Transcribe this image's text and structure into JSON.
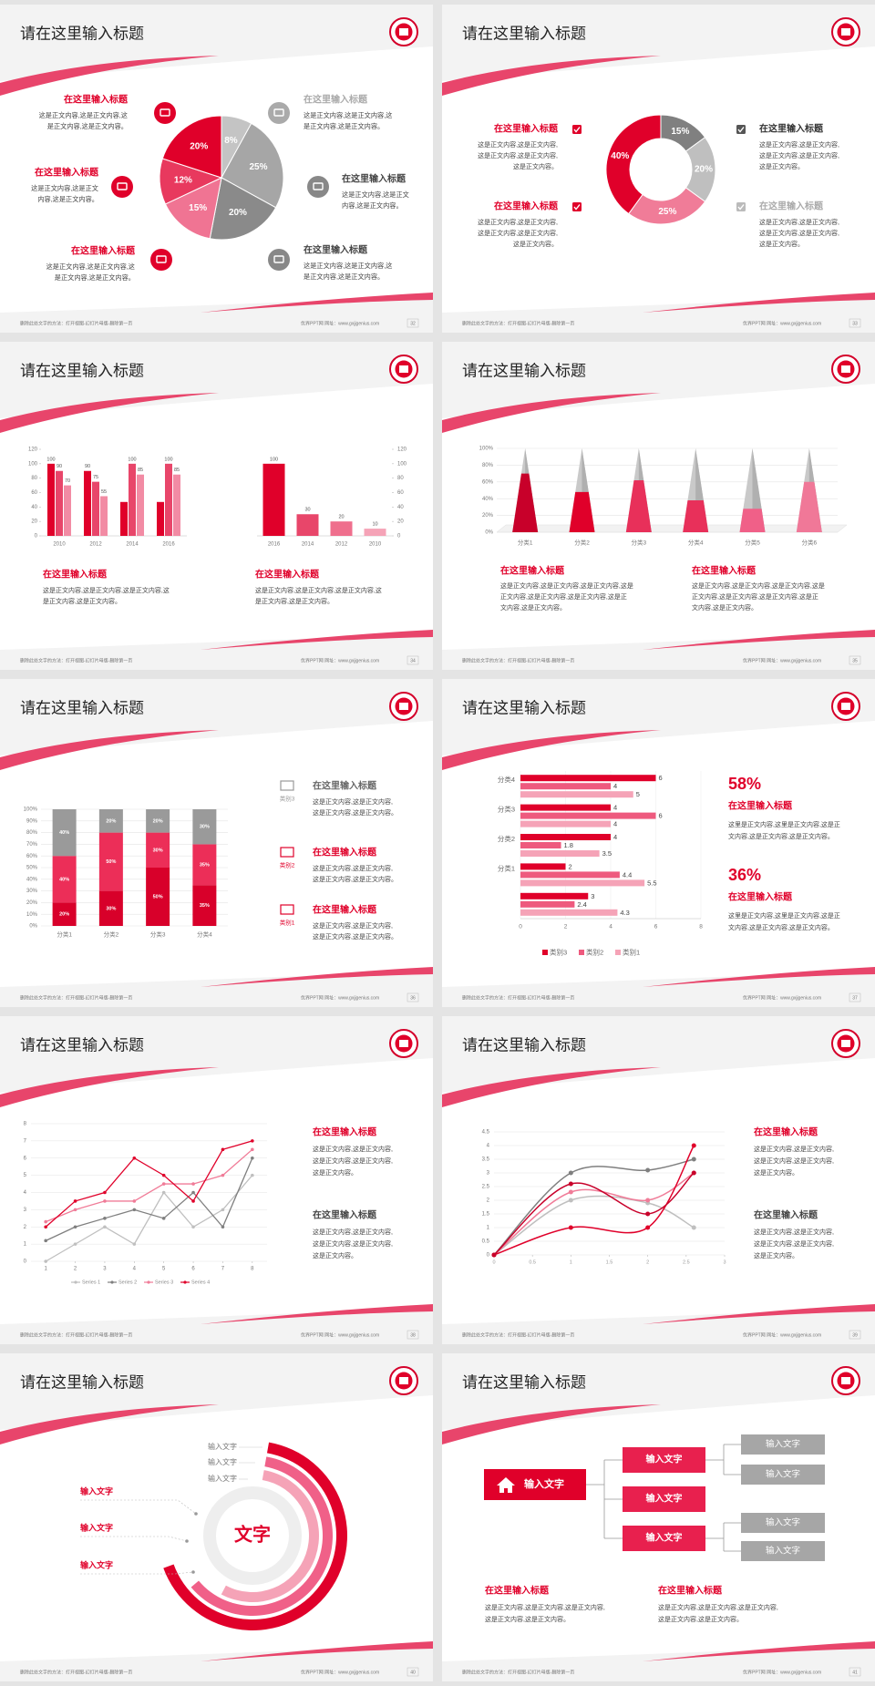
{
  "slides": [
    {
      "title": "请在这里输入标题",
      "footer_left": "删除此处文字的方法：打开视图-幻灯片母版-删除第一页",
      "footer_right": "优界PPT网   网址：www.gxjjgenius.com",
      "page": 32,
      "pie": {
        "values": [
          8,
          25,
          20,
          15,
          12,
          20
        ],
        "value_labels": [
          "8%",
          "25%",
          "20%",
          "15%",
          "12%",
          "20%"
        ],
        "colors": [
          "#c4c4c4",
          "#a6a6a6",
          "#8a8a8a",
          "#f07493",
          "#e8395e",
          "#e0002a"
        ]
      },
      "items": [
        {
          "title": "在这里输入标题",
          "body": [
            "这是正文内容,这是正文内容,这",
            "是正文内容,这是正文内容。"
          ]
        },
        {
          "title": "在这里输入标题",
          "body": [
            "这是正文内容,这是正文",
            "内容,这是正文内容。"
          ]
        },
        {
          "title": "在这里输入标题",
          "body": [
            "这是正文内容,这是正文内容,这",
            "是正文内容,这是正文内容。"
          ]
        },
        {
          "title": "在这里输入标题",
          "body": [
            "这是正文内容,这是正文内容,这",
            "是正文内容,这是正文内容。"
          ]
        },
        {
          "title": "在这里输入标题",
          "body": [
            "这是正文内容,这是正文",
            "内容,这是正文内容。"
          ]
        },
        {
          "title": "在这里输入标题",
          "body": [
            "这是正文内容,这是正文内容,这",
            "是正文内容,这是正文内容。"
          ]
        }
      ]
    },
    {
      "title": "请在这里输入标题",
      "footer_left": "删除此处文字的方法：打开视图-幻灯片母版-删除第一页",
      "footer_right": "优界PPT网   网址：www.gxjjgenius.com",
      "page": 33,
      "donut": {
        "values": [
          15,
          20,
          25,
          40
        ],
        "value_labels": [
          "15%",
          "20%",
          "25%",
          "40%"
        ],
        "colors": [
          "#808080",
          "#bfbfbf",
          "#f07c98",
          "#e0002a"
        ]
      },
      "items": [
        {
          "title": "在这里输入标题",
          "body": [
            "这是正文内容,这是正文内容,",
            "这是正文内容,这是正文内容,",
            "这是正文内容。"
          ]
        },
        {
          "title": "在这里输入标题",
          "body": [
            "这是正文内容,这是正文内容,",
            "这是正文内容,这是正文内容,",
            "这是正文内容。"
          ]
        },
        {
          "title": "在这里输入标题",
          "body": [
            "这是正文内容,这是正文内容,",
            "这是正文内容,这是正文内容,",
            "这是正文内容。"
          ]
        },
        {
          "title": "在这里输入标题",
          "body": [
            "这是正文内容,这是正文内容,",
            "这是正文内容,这是正文内容,",
            "这是正文内容。"
          ]
        }
      ]
    },
    {
      "title": "请在这里输入标题",
      "footer_left": "删除此处文字的方法：打开视图-幻灯片母版-删除第一页",
      "footer_right": "优界PPT网   网址：www.gxjjgenius.com",
      "page": 34,
      "bar_left": {
        "categories": [
          "2010",
          "2012",
          "2014",
          "2016"
        ],
        "ylim": [
          0,
          120
        ],
        "yticks": [
          0,
          20,
          40,
          60,
          80,
          100,
          120
        ],
        "series": [
          {
            "color": "#e0002a",
            "values": [
              100,
              90,
              47,
              47
            ],
            "value_labels": [
              "100",
              "90",
              null,
              null
            ]
          },
          {
            "color": "#e8466a",
            "values": [
              90,
              75,
              100,
              100
            ]
          },
          {
            "color": "#f28ba4",
            "values": [
              70,
              55,
              85,
              85
            ]
          }
        ]
      },
      "bar_right": {
        "categories": [
          "2016",
          "2014",
          "2012",
          "2010"
        ],
        "values": [
          100,
          30,
          20,
          10
        ],
        "colors": [
          "#e0002a",
          "#e8466a",
          "#ef6f8d",
          "#f5a3b7"
        ],
        "ylim": [
          0,
          120
        ],
        "yticks": [
          0,
          20,
          40,
          60,
          80,
          100,
          120
        ]
      },
      "items": [
        {
          "title": "在这里输入标题",
          "body": [
            "这是正文内容,这是正文内容,这是正文内容,这",
            "是正文内容,这是正文内容。"
          ]
        },
        {
          "title": "在这里输入标题",
          "body": [
            "这是正文内容,这是正文内容,这是正文内容,这",
            "是正文内容,这是正文内容。"
          ]
        }
      ]
    },
    {
      "title": "请在这里输入标题",
      "footer_left": "删除此处文字的方法：打开视图-幻灯片母版-删除第一页",
      "footer_right": "优界PPT网   网址：www.gxjjgenius.com",
      "page": 35,
      "cones": {
        "categories": [
          "分类1",
          "分类2",
          "分类3",
          "分类4",
          "分类5",
          "分类6"
        ],
        "values": [
          70,
          48,
          62,
          38,
          28,
          60
        ],
        "colors": [
          "#c8002a",
          "#e0002a",
          "#e8305a",
          "#e8305a",
          "#f06088",
          "#f07898"
        ],
        "ylim": [
          0,
          100
        ],
        "yticks": [
          {
            "value": 0,
            "label": "0%"
          },
          {
            "value": 20,
            "label": "20%"
          },
          {
            "value": 40,
            "label": "40%"
          },
          {
            "value": 60,
            "label": "60%"
          },
          {
            "value": 80,
            "label": "80%"
          },
          {
            "value": 100,
            "label": "100%"
          }
        ]
      },
      "items": [
        {
          "title": "在这里输入标题",
          "body": [
            "这是正文内容,这是正文内容,这是正文内容,这是",
            "正文内容,这是正文内容,这是正文内容,这是正",
            "文内容,这是正文内容。"
          ]
        },
        {
          "title": "在这里输入标题",
          "body": [
            "这是正文内容,这是正文内容,这是正文内容,这是",
            "正文内容,这是正文内容,这是正文内容,这是正",
            "文内容,这是正文内容。"
          ]
        }
      ]
    },
    {
      "title": "请在这里输入标题",
      "footer_left": "删除此处文字的方法：打开视图-幻灯片母版-删除第一页",
      "footer_right": "优界PPT网   网址：www.gxjjgenius.com",
      "page": 36,
      "stacked": {
        "categories": [
          "分类1",
          "分类2",
          "分类3",
          "分类4"
        ],
        "series": [
          {
            "name": "类别1",
            "color": "#d8002a",
            "values": [
              20,
              30,
              50,
              35
            ],
            "value_labels": [
              "20%",
              "30%",
              "50%",
              "35%"
            ]
          },
          {
            "name": "类别2",
            "color": "#ec2e58",
            "values": [
              40,
              50,
              30,
              35
            ],
            "value_labels": [
              "40%",
              "50%",
              "30%",
              "35%"
            ]
          },
          {
            "name": "类别3",
            "color": "#9a9a9a",
            "values": [
              40,
              20,
              20,
              30
            ],
            "value_labels": [
              "40%",
              "20%",
              "20%",
              "30%"
            ]
          }
        ],
        "ylim": [
          0,
          100
        ],
        "yticks": [
          {
            "value": 0,
            "label": "0%"
          },
          {
            "value": 10,
            "label": "10%"
          },
          {
            "value": 20,
            "label": "20%"
          },
          {
            "value": 30,
            "label": "30%"
          },
          {
            "value": 40,
            "label": "40%"
          },
          {
            "value": 50,
            "label": "50%"
          },
          {
            "value": 60,
            "label": "60%"
          },
          {
            "value": 70,
            "label": "70%"
          },
          {
            "value": 80,
            "label": "80%"
          },
          {
            "value": 90,
            "label": "90%"
          },
          {
            "value": 100,
            "label": "100%"
          }
        ]
      },
      "items": [
        {
          "title": "在这里输入标题",
          "body": [
            "这是正文内容,这是正文内容,",
            "这是正文内容,这是正文内容。"
          ]
        },
        {
          "title": "在这里输入标题",
          "body": [
            "这是正文内容,这是正文内容,",
            "这是正文内容,这是正文内容。"
          ]
        },
        {
          "title": "在这里输入标题",
          "body": [
            "这是正文内容,这是正文内容,",
            "这是正文内容,这是正文内容。"
          ]
        }
      ]
    },
    {
      "title": "请在这里输入标题",
      "footer_left": "删除此处文字的方法：打开视图-幻灯片母版-删除第一页",
      "footer_right": "优界PPT网   网址：www.gxjjgenius.com",
      "page": 37,
      "hbar": {
        "categories": [
          null,
          "分类1",
          "分类2",
          "分类3",
          "分类4"
        ],
        "series": [
          {
            "name": "类别3",
            "color": "#e0002a",
            "values": [
              3,
              2,
              4,
              4,
              6
            ]
          },
          {
            "name": "类别2",
            "color": "#ee5a7e",
            "values": [
              2.4,
              4.4,
              1.8,
              6,
              4
            ]
          },
          {
            "name": "类别1",
            "color": "#f5a3b7",
            "values": [
              4.3,
              5.5,
              3.5,
              4,
              5
            ]
          }
        ],
        "xlim": [
          0,
          8
        ],
        "xticks": [
          0,
          2,
          4,
          6,
          8
        ]
      },
      "stats": [
        {
          "value": "58%",
          "title": "在这里输入标题",
          "body": [
            "这里是正文内容,这里是正文内容,这是正",
            "文内容,这是正文内容,这是正文内容。"
          ]
        },
        {
          "value": "36%",
          "title": "在这里输入标题",
          "body": [
            "这里是正文内容,这里是正文内容,这是正",
            "文内容,这是正文内容,这是正文内容。"
          ]
        }
      ]
    },
    {
      "title": "请在这里输入标题",
      "footer_left": "删除此处文字的方法：打开视图-幻灯片母版-删除第一页",
      "footer_right": "优界PPT网   网址：www.gxjjgenius.com",
      "page": 38,
      "line": {
        "x": [
          1,
          2,
          3,
          4,
          5,
          6,
          7,
          8
        ],
        "xlim": [
          0.5,
          8.5
        ],
        "xticks": [
          1,
          2,
          3,
          4,
          5,
          6,
          7,
          8
        ],
        "ylim": [
          0,
          8
        ],
        "yticks": [
          0,
          1,
          2,
          3,
          4,
          5,
          6,
          7,
          8
        ],
        "series": [
          {
            "name": "Series 1",
            "color": "#bfbfbf",
            "values": [
              0,
              1,
              2,
              1,
              4,
              2,
              3,
              5
            ]
          },
          {
            "name": "Series 2",
            "color": "#7f7f7f",
            "values": [
              1.2,
              2,
              2.5,
              3,
              2.5,
              4,
              2,
              6
            ]
          },
          {
            "name": "Series 3",
            "color": "#f07c98",
            "values": [
              2.3,
              3,
              3.5,
              3.5,
              4.5,
              4.5,
              5,
              6.5
            ]
          },
          {
            "name": "Series 4",
            "color": "#e0002a",
            "values": [
              2,
              3.5,
              4,
              6,
              5,
              3.5,
              6.5,
              7
            ]
          }
        ]
      },
      "items": [
        {
          "title": "在这里输入标题",
          "body": [
            "这是正文内容,这是正文内容,",
            "这是正文内容,这是正文内容,",
            "这是正文内容。"
          ]
        },
        {
          "title": "在这里输入标题",
          "body": [
            "这是正文内容,这是正文内容,",
            "这是正文内容,这是正文内容,",
            "这是正文内容。"
          ]
        }
      ]
    },
    {
      "title": "请在这里输入标题",
      "footer_left": "删除此处文字的方法：打开视图-幻灯片母版-删除第一页",
      "footer_right": "优界PPT网   网址：www.gxjjgenius.com",
      "page": 39,
      "curves": {
        "x": [
          0,
          1,
          2,
          2.6
        ],
        "xlim": [
          0,
          3
        ],
        "xticks": [
          0,
          0.5,
          1,
          1.5,
          2,
          2.5,
          3
        ],
        "ylim": [
          0,
          4.5
        ],
        "yticks": [
          0,
          0.5,
          1,
          1.5,
          2,
          2.5,
          3,
          3.5,
          4,
          4.5
        ],
        "series": [
          {
            "color": "#7f7f7f",
            "values": [
              0,
              3,
              3.1,
              3.5
            ]
          },
          {
            "color": "#bfbfbf",
            "values": [
              0,
              2,
              1.9,
              1
            ]
          },
          {
            "color": "#f07c98",
            "values": [
              0,
              2.3,
              2,
              3
            ]
          },
          {
            "color": "#e0002a",
            "values": [
              0,
              1,
              1,
              4
            ]
          },
          {
            "color": "#c8002a",
            "values": [
              0,
              2.6,
              1.5,
              3
            ]
          }
        ]
      },
      "items": [
        {
          "title": "在这里输入标题",
          "body": [
            "这是正文内容,这是正文内容,",
            "这是正文内容,这是正文内容,",
            "这是正文内容。"
          ]
        },
        {
          "title": "在这里输入标题",
          "body": [
            "这是正文内容,这是正文内容,",
            "这是正文内容,这是正文内容,",
            "这是正文内容。"
          ]
        }
      ]
    },
    {
      "title": "请在这里输入标题",
      "footer_left": "删除此处文字的方法：打开视图-幻灯片母版-删除第一页",
      "footer_right": "优界PPT网   网址：www.gxjjgenius.com",
      "page": 40,
      "diagram": {
        "center": "文字",
        "right_labels": [
          "输入文字",
          "输入文字",
          "输入文字"
        ],
        "left_labels": [
          "输入文字",
          "输入文字",
          "输入文字"
        ]
      }
    },
    {
      "title": "请在这里输入标题",
      "footer_left": "删除此处文字的方法：打开视图-幻灯片母版-删除第一页",
      "footer_right": "优界PPT网   网址：www.gxjjgenius.com",
      "page": 41,
      "flow": {
        "root": "输入文字",
        "mids": [
          "输入文字",
          "输入文字",
          "输入文字"
        ],
        "leaves": [
          "输入文字",
          "输入文字",
          "输入文字",
          "输入文字"
        ]
      },
      "items": [
        {
          "title": "在这里输入标题",
          "body": [
            "这是正文内容,这是正文内容,这是正文内容,",
            "这是正文内容,这是正文内容。"
          ]
        },
        {
          "title": "在这里输入标题",
          "body": [
            "这是正文内容,这是正文内容,这是正文内容,",
            "这是正文内容,这是正文内容。"
          ]
        }
      ]
    }
  ]
}
